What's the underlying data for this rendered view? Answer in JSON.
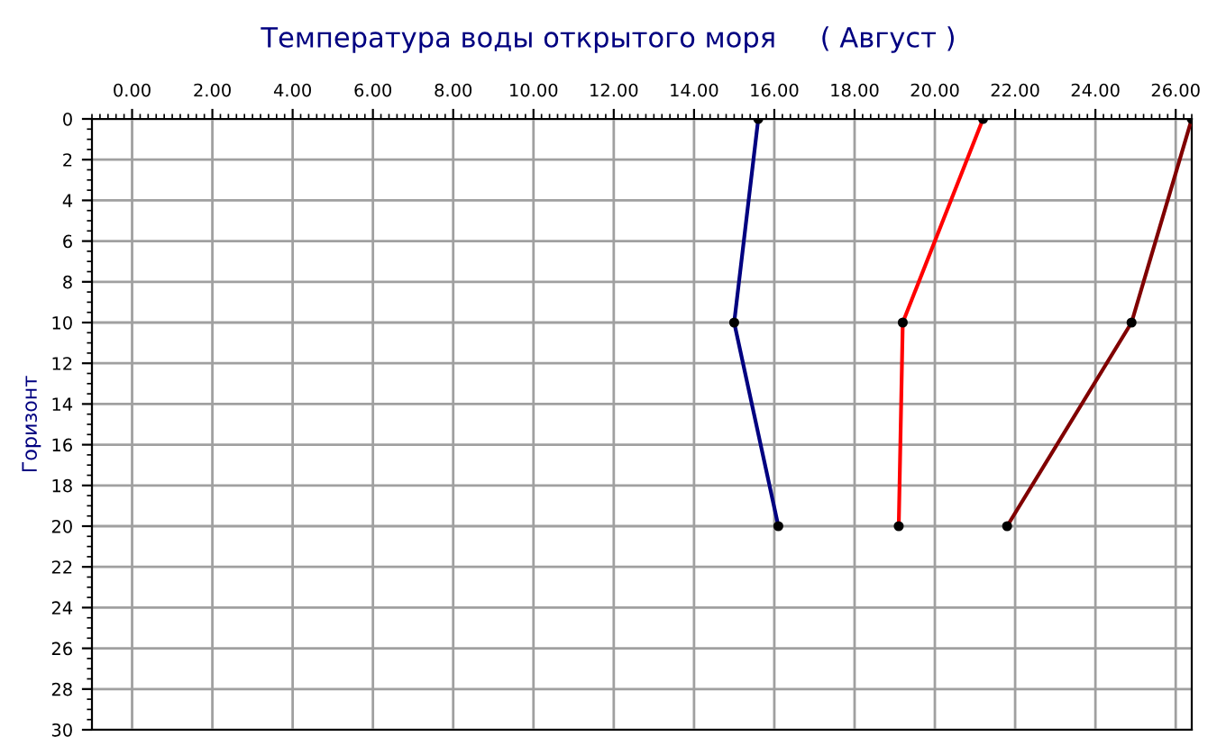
{
  "chart_data": {
    "type": "line",
    "title": "Температура воды открытого моря     ( Август )",
    "ylabel": "Горизонт",
    "xlim": [
      -1,
      26.4
    ],
    "ylim": [
      30,
      0
    ],
    "xticks": [
      {
        "value": 0,
        "label": "0.00"
      },
      {
        "value": 2,
        "label": "2.00"
      },
      {
        "value": 4,
        "label": "4.00"
      },
      {
        "value": 6,
        "label": "6.00"
      },
      {
        "value": 8,
        "label": "8.00"
      },
      {
        "value": 10,
        "label": "10.00"
      },
      {
        "value": 12,
        "label": "12.00"
      },
      {
        "value": 14,
        "label": "14.00"
      },
      {
        "value": 16,
        "label": "16.00"
      },
      {
        "value": 18,
        "label": "18.00"
      },
      {
        "value": 20,
        "label": "20.00"
      },
      {
        "value": 22,
        "label": "22.00"
      },
      {
        "value": 24,
        "label": "24.00"
      },
      {
        "value": 26,
        "label": "26.00"
      }
    ],
    "yticks": [
      0,
      2,
      4,
      6,
      8,
      10,
      12,
      14,
      16,
      18,
      20,
      22,
      24,
      26,
      28,
      30
    ],
    "grid": true,
    "marker": "circle",
    "line_style": "solid",
    "series": [
      {
        "color": "#000080",
        "x": [
          15.6,
          15.0,
          16.1
        ],
        "values": [
          0,
          10,
          20
        ]
      },
      {
        "color": "#ff0000",
        "x": [
          21.2,
          19.2,
          19.1
        ],
        "values": [
          0,
          10,
          20
        ]
      },
      {
        "color": "#800000",
        "x": [
          26.4,
          24.9,
          21.8
        ],
        "values": [
          0,
          10,
          20
        ]
      }
    ]
  }
}
